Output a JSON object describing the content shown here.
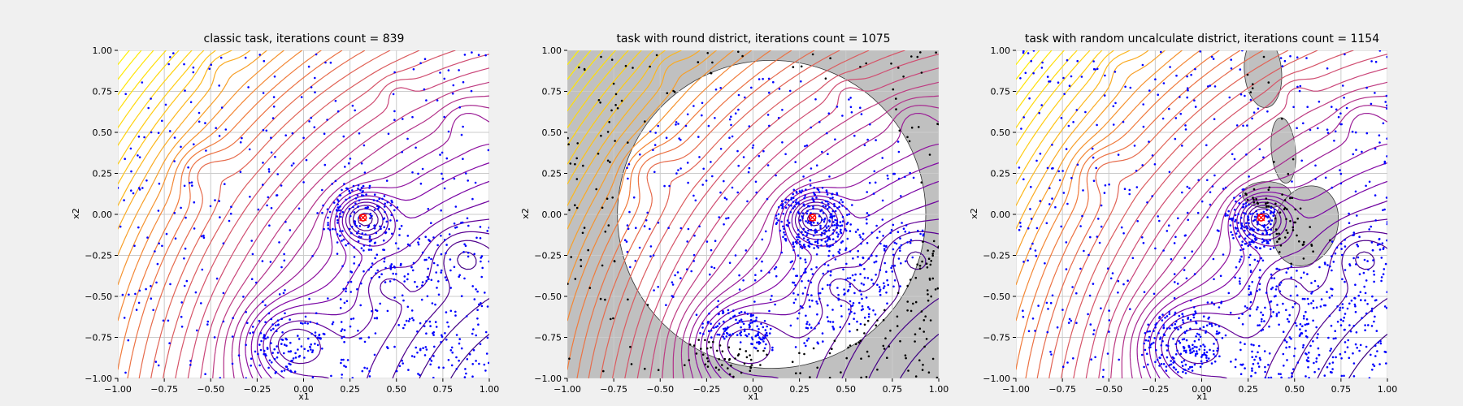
{
  "chart_data": [
    {
      "type": "contour",
      "title": "classic task, iterations count = 839",
      "xlabel": "x1",
      "ylabel": "x2",
      "xlim": [
        -1.0,
        1.0
      ],
      "ylim": [
        -1.0,
        1.0
      ],
      "xticks": [
        "−1.00",
        "−0.75",
        "−0.50",
        "−0.25",
        "0.00",
        "0.25",
        "0.50",
        "0.75",
        "1.00"
      ],
      "yticks": [
        "−1.00",
        "−0.75",
        "−0.50",
        "−0.25",
        "0.00",
        "0.25",
        "0.50",
        "0.75",
        "1.00"
      ],
      "grid": true,
      "minimum_marker": {
        "x": 0.32,
        "y": -0.02
      },
      "local_minima": [
        [
          -0.1,
          -0.78
        ],
        [
          0.32,
          -0.02
        ],
        [
          0.43,
          -0.42
        ],
        [
          0.85,
          -0.24
        ],
        [
          -0.55,
          0.27
        ],
        [
          0.5,
          0.75
        ],
        [
          0.87,
          0.58
        ]
      ],
      "trial_points_count": 839,
      "forbidden_region": "none"
    },
    {
      "type": "contour",
      "title": "task with round district, iterations count = 1075",
      "xlabel": "x1",
      "ylabel": "x2",
      "xlim": [
        -1.0,
        1.0
      ],
      "ylim": [
        -1.0,
        1.0
      ],
      "xticks": [
        "−1.00",
        "−0.75",
        "−0.50",
        "−0.25",
        "0.00",
        "0.25",
        "0.50",
        "0.75",
        "1.00"
      ],
      "yticks": [
        "−1.00",
        "−0.75",
        "−0.50",
        "−0.25",
        "0.00",
        "0.25",
        "0.50",
        "0.75",
        "1.00"
      ],
      "grid": true,
      "minimum_marker": {
        "x": 0.32,
        "y": -0.02
      },
      "local_minima": [
        [
          -0.1,
          -0.78
        ],
        [
          0.32,
          -0.02
        ],
        [
          0.43,
          -0.42
        ],
        [
          0.85,
          -0.24
        ],
        [
          -0.55,
          0.27
        ],
        [
          0.5,
          0.75
        ],
        [
          0.87,
          0.58
        ]
      ],
      "trial_points_count": 1075,
      "forbidden_region": "outside circle",
      "feasible_circle": {
        "cx": 0.1,
        "cy": 0.0,
        "r": 0.83
      }
    },
    {
      "type": "contour",
      "title": "task with random uncalculate district, iterations count = 1154",
      "xlabel": "x1",
      "ylabel": "x2",
      "xlim": [
        -1.0,
        1.0
      ],
      "ylim": [
        -1.0,
        1.0
      ],
      "xticks": [
        "−1.00",
        "−0.75",
        "−0.50",
        "−0.25",
        "0.00",
        "0.25",
        "0.50",
        "0.75",
        "1.00"
      ],
      "yticks": [
        "−1.00",
        "−0.75",
        "−0.50",
        "−0.25",
        "0.00",
        "0.25",
        "0.50",
        "0.75",
        "1.00"
      ],
      "grid": true,
      "minimum_marker": {
        "x": 0.32,
        "y": -0.02
      },
      "local_minima": [
        [
          -0.1,
          -0.78
        ],
        [
          0.32,
          -0.02
        ],
        [
          0.43,
          -0.42
        ],
        [
          0.85,
          -0.24
        ],
        [
          -0.55,
          0.27
        ],
        [
          0.5,
          0.75
        ],
        [
          0.87,
          0.58
        ]
      ],
      "trial_points_count": 1154,
      "forbidden_region": "random ellipses",
      "ellipses": [
        {
          "cx": 0.33,
          "cy": 0.87,
          "rx": 0.1,
          "ry": 0.22,
          "rot": 5
        },
        {
          "cx": 0.44,
          "cy": 0.39,
          "rx": 0.065,
          "ry": 0.2,
          "rot": 5
        },
        {
          "cx": 0.35,
          "cy": 0.12,
          "rx": 0.13,
          "ry": 0.08,
          "rot": 0
        },
        {
          "cx": 0.56,
          "cy": -0.07,
          "rx": 0.17,
          "ry": 0.25,
          "rot": -20
        }
      ]
    }
  ],
  "colors": {
    "points": "#0000ff",
    "forbidden_points": "#000000",
    "forbidden_fill": "#c0c0c0",
    "minimum_marker": "#ff0000",
    "grid": "#cbcbcb",
    "background": "#f0f0f0",
    "contour_low": "#3a007f",
    "contour_high": "#ffe000"
  }
}
